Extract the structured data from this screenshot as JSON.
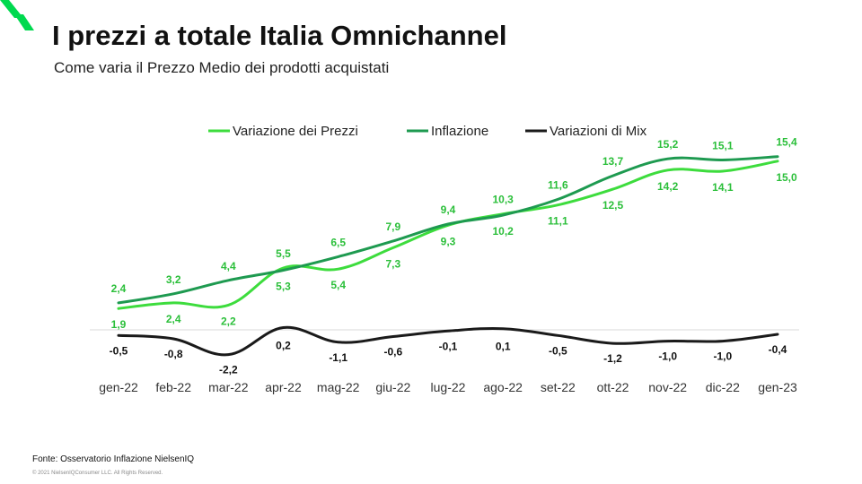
{
  "header": {
    "title": "I prezzi a totale Italia Omnichannel",
    "subtitle": "Come varia il Prezzo Medio dei prodotti acquistati"
  },
  "footer": {
    "source": "Fonte: Osservatorio Inflazione NielsenIQ",
    "copyright": "© 2021 NielsenIQConsumer LLC. All Rights Reserved."
  },
  "colors": {
    "brand": "#00d94f",
    "prezzi": "#3ddc3d",
    "inflazione": "#1e9a50",
    "mix": "#1a1a1a"
  },
  "chart_data": {
    "type": "line",
    "title": "",
    "xlabel": "",
    "ylabel": "",
    "categories": [
      "gen-22",
      "feb-22",
      "mar-22",
      "apr-22",
      "mag-22",
      "giu-22",
      "lug-22",
      "ago-22",
      "set-22",
      "ott-22",
      "nov-22",
      "dic-22",
      "gen-23"
    ],
    "legend_position": "top",
    "grid": false,
    "series": [
      {
        "name": "Variazione dei Prezzi",
        "color": "#3ddc3d",
        "values": [
          1.9,
          2.4,
          2.2,
          5.5,
          5.4,
          7.3,
          9.3,
          10.3,
          11.1,
          12.5,
          14.2,
          14.1,
          15.0
        ],
        "labels": [
          "1,9",
          "2,4",
          "2,2",
          "5,5",
          "5,4",
          "7,3",
          "9,3",
          "10,3",
          "11,1",
          "12,5",
          "14,2",
          "14,1",
          "15,0"
        ]
      },
      {
        "name": "Inflazione",
        "color": "#1e9a50",
        "values": [
          2.4,
          3.2,
          4.4,
          5.3,
          6.5,
          7.9,
          9.4,
          10.2,
          11.6,
          13.7,
          15.2,
          15.1,
          15.4
        ],
        "labels": [
          "2,4",
          "3,2",
          "4,4",
          "5,3",
          "6,5",
          "7,9",
          "9,4",
          "10,2",
          "11,6",
          "13,7",
          "15,2",
          "15,1",
          "15,4"
        ]
      },
      {
        "name": "Variazioni di Mix",
        "color": "#1a1a1a",
        "values": [
          -0.5,
          -0.8,
          -2.2,
          0.2,
          -1.1,
          -0.6,
          -0.1,
          0.1,
          -0.5,
          -1.2,
          -1.0,
          -1.0,
          -0.4
        ],
        "labels": [
          "-0,5",
          "-0,8",
          "-2,2",
          "0,2",
          "-1,1",
          "-0,6",
          "-0,1",
          "0,1",
          "-0,5",
          "-1,2",
          "-1,0",
          "-1,0",
          "-0,4"
        ]
      }
    ]
  }
}
